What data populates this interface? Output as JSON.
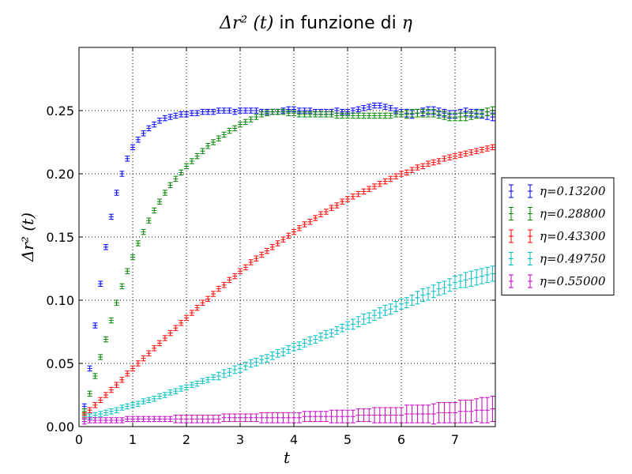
{
  "chart_data": {
    "type": "scatter",
    "title": {
      "math1": "Δr² (t)",
      "text": " in funzione di ",
      "math2": "η"
    },
    "xlabel": "t",
    "ylabel": "Δr² (t)",
    "xlim": [
      0,
      7.75
    ],
    "ylim": [
      0,
      0.3
    ],
    "xticks": [
      0,
      1,
      2,
      3,
      4,
      5,
      6,
      7
    ],
    "yticks": [
      0.0,
      0.05,
      0.1,
      0.15,
      0.2,
      0.25
    ],
    "ytick_labels": [
      "0.00",
      "0.05",
      "0.10",
      "0.15",
      "0.20",
      "0.25"
    ],
    "grid": true,
    "legend_placement": "outside-right",
    "x": [
      0.1,
      0.2,
      0.3,
      0.4,
      0.5,
      0.6,
      0.7,
      0.8,
      0.9,
      1.0,
      1.1,
      1.2,
      1.3,
      1.4,
      1.5,
      1.6,
      1.7,
      1.8,
      1.9,
      2.0,
      2.1,
      2.2,
      2.3,
      2.4,
      2.5,
      2.6,
      2.7,
      2.8,
      2.9,
      3.0,
      3.1,
      3.2,
      3.3,
      3.4,
      3.5,
      3.6,
      3.7,
      3.8,
      3.9,
      4.0,
      4.1,
      4.2,
      4.3,
      4.4,
      4.5,
      4.6,
      4.7,
      4.8,
      4.9,
      5.0,
      5.1,
      5.2,
      5.3,
      5.4,
      5.5,
      5.6,
      5.7,
      5.8,
      5.9,
      6.0,
      6.1,
      6.2,
      6.3,
      6.4,
      6.5,
      6.6,
      6.7,
      6.8,
      6.9,
      7.0,
      7.1,
      7.2,
      7.3,
      7.4,
      7.5,
      7.6,
      7.7
    ],
    "series": [
      {
        "name": "η=0.13200",
        "color": "#0000ff",
        "values": [
          0.016,
          0.046,
          0.08,
          0.113,
          0.142,
          0.166,
          0.185,
          0.2,
          0.212,
          0.221,
          0.227,
          0.232,
          0.236,
          0.239,
          0.242,
          0.244,
          0.245,
          0.246,
          0.247,
          0.247,
          0.248,
          0.248,
          0.249,
          0.249,
          0.249,
          0.25,
          0.25,
          0.25,
          0.249,
          0.25,
          0.25,
          0.25,
          0.25,
          0.249,
          0.249,
          0.249,
          0.249,
          0.25,
          0.251,
          0.251,
          0.25,
          0.25,
          0.25,
          0.249,
          0.249,
          0.249,
          0.249,
          0.25,
          0.249,
          0.249,
          0.25,
          0.251,
          0.252,
          0.253,
          0.254,
          0.254,
          0.253,
          0.252,
          0.25,
          0.249,
          0.248,
          0.247,
          0.248,
          0.249,
          0.25,
          0.25,
          0.249,
          0.248,
          0.247,
          0.247,
          0.248,
          0.249,
          0.248,
          0.248,
          0.247,
          0.246,
          0.245
        ],
        "errors": [
          0.002,
          0.002,
          0.002,
          0.002,
          0.002,
          0.002,
          0.002,
          0.002,
          0.002,
          0.002,
          0.002,
          0.002,
          0.002,
          0.002,
          0.002,
          0.002,
          0.002,
          0.002,
          0.002,
          0.002,
          0.002,
          0.002,
          0.002,
          0.002,
          0.002,
          0.002,
          0.002,
          0.002,
          0.002,
          0.002,
          0.002,
          0.002,
          0.002,
          0.002,
          0.002,
          0.002,
          0.002,
          0.002,
          0.002,
          0.002,
          0.002,
          0.002,
          0.002,
          0.002,
          0.002,
          0.002,
          0.002,
          0.002,
          0.002,
          0.002,
          0.002,
          0.002,
          0.002,
          0.002,
          0.002,
          0.002,
          0.002,
          0.002,
          0.002,
          0.002,
          0.003,
          0.003,
          0.003,
          0.003,
          0.003,
          0.003,
          0.003,
          0.003,
          0.003,
          0.003,
          0.003,
          0.003,
          0.003,
          0.003,
          0.003,
          0.003,
          0.003
        ]
      },
      {
        "name": "η=0.28800",
        "color": "#008000",
        "values": [
          0.012,
          0.026,
          0.04,
          0.055,
          0.069,
          0.084,
          0.098,
          0.111,
          0.123,
          0.134,
          0.145,
          0.154,
          0.163,
          0.171,
          0.178,
          0.185,
          0.191,
          0.196,
          0.201,
          0.206,
          0.21,
          0.214,
          0.218,
          0.222,
          0.225,
          0.228,
          0.231,
          0.234,
          0.236,
          0.239,
          0.241,
          0.243,
          0.245,
          0.247,
          0.248,
          0.249,
          0.249,
          0.249,
          0.248,
          0.248,
          0.247,
          0.247,
          0.247,
          0.247,
          0.247,
          0.247,
          0.247,
          0.246,
          0.246,
          0.246,
          0.246,
          0.246,
          0.246,
          0.246,
          0.246,
          0.246,
          0.246,
          0.246,
          0.247,
          0.247,
          0.247,
          0.248,
          0.248,
          0.248,
          0.248,
          0.248,
          0.247,
          0.246,
          0.245,
          0.245,
          0.245,
          0.245,
          0.246,
          0.247,
          0.248,
          0.249,
          0.25
        ],
        "errors": [
          0.002,
          0.002,
          0.002,
          0.002,
          0.002,
          0.002,
          0.002,
          0.002,
          0.002,
          0.002,
          0.002,
          0.002,
          0.002,
          0.002,
          0.002,
          0.002,
          0.002,
          0.002,
          0.002,
          0.002,
          0.002,
          0.002,
          0.002,
          0.002,
          0.002,
          0.002,
          0.002,
          0.002,
          0.002,
          0.002,
          0.002,
          0.002,
          0.002,
          0.002,
          0.002,
          0.002,
          0.002,
          0.002,
          0.002,
          0.002,
          0.002,
          0.002,
          0.002,
          0.002,
          0.002,
          0.002,
          0.002,
          0.002,
          0.002,
          0.002,
          0.002,
          0.002,
          0.002,
          0.002,
          0.002,
          0.002,
          0.002,
          0.002,
          0.002,
          0.002,
          0.003,
          0.003,
          0.003,
          0.003,
          0.003,
          0.003,
          0.003,
          0.003,
          0.003,
          0.003,
          0.003,
          0.003,
          0.003,
          0.003,
          0.003,
          0.003,
          0.003
        ]
      },
      {
        "name": "η=0.43300",
        "color": "#ff0000",
        "values": [
          0.009,
          0.013,
          0.017,
          0.021,
          0.025,
          0.029,
          0.033,
          0.037,
          0.042,
          0.046,
          0.05,
          0.054,
          0.058,
          0.062,
          0.066,
          0.07,
          0.074,
          0.078,
          0.082,
          0.086,
          0.09,
          0.094,
          0.098,
          0.101,
          0.105,
          0.109,
          0.112,
          0.116,
          0.119,
          0.123,
          0.126,
          0.13,
          0.133,
          0.136,
          0.139,
          0.142,
          0.145,
          0.148,
          0.151,
          0.154,
          0.157,
          0.16,
          0.162,
          0.165,
          0.168,
          0.17,
          0.173,
          0.175,
          0.178,
          0.18,
          0.182,
          0.184,
          0.186,
          0.188,
          0.19,
          0.192,
          0.194,
          0.196,
          0.198,
          0.2,
          0.201,
          0.203,
          0.205,
          0.206,
          0.208,
          0.209,
          0.21,
          0.212,
          0.213,
          0.214,
          0.215,
          0.216,
          0.217,
          0.218,
          0.219,
          0.22,
          0.221
        ],
        "errors": [
          0.002,
          0.002,
          0.002,
          0.002,
          0.002,
          0.002,
          0.002,
          0.002,
          0.002,
          0.002,
          0.002,
          0.002,
          0.002,
          0.002,
          0.002,
          0.002,
          0.002,
          0.002,
          0.002,
          0.002,
          0.002,
          0.002,
          0.002,
          0.002,
          0.002,
          0.002,
          0.002,
          0.002,
          0.002,
          0.002,
          0.002,
          0.002,
          0.002,
          0.002,
          0.002,
          0.002,
          0.002,
          0.002,
          0.002,
          0.002,
          0.002,
          0.002,
          0.002,
          0.002,
          0.002,
          0.002,
          0.002,
          0.002,
          0.002,
          0.002,
          0.002,
          0.002,
          0.002,
          0.002,
          0.002,
          0.002,
          0.002,
          0.002,
          0.002,
          0.002,
          0.002,
          0.002,
          0.002,
          0.002,
          0.002,
          0.002,
          0.002,
          0.002,
          0.002,
          0.002,
          0.002,
          0.002,
          0.002,
          0.002,
          0.002,
          0.002,
          0.002
        ]
      },
      {
        "name": "η=0.49750",
        "color": "#00bfbf",
        "values": [
          0.006,
          0.008,
          0.009,
          0.01,
          0.011,
          0.012,
          0.013,
          0.015,
          0.016,
          0.017,
          0.018,
          0.02,
          0.021,
          0.022,
          0.024,
          0.025,
          0.027,
          0.028,
          0.03,
          0.031,
          0.033,
          0.034,
          0.036,
          0.037,
          0.039,
          0.04,
          0.042,
          0.043,
          0.045,
          0.046,
          0.048,
          0.05,
          0.051,
          0.053,
          0.054,
          0.056,
          0.058,
          0.059,
          0.061,
          0.063,
          0.064,
          0.066,
          0.068,
          0.069,
          0.071,
          0.073,
          0.074,
          0.076,
          0.078,
          0.08,
          0.081,
          0.083,
          0.085,
          0.086,
          0.088,
          0.09,
          0.092,
          0.093,
          0.095,
          0.097,
          0.098,
          0.1,
          0.102,
          0.104,
          0.105,
          0.107,
          0.109,
          0.11,
          0.112,
          0.114,
          0.115,
          0.116,
          0.117,
          0.118,
          0.119,
          0.12,
          0.121
        ],
        "errors": [
          0.002,
          0.002,
          0.002,
          0.002,
          0.002,
          0.002,
          0.002,
          0.002,
          0.002,
          0.002,
          0.002,
          0.002,
          0.002,
          0.002,
          0.002,
          0.002,
          0.002,
          0.002,
          0.002,
          0.002,
          0.002,
          0.002,
          0.002,
          0.002,
          0.002,
          0.003,
          0.003,
          0.003,
          0.003,
          0.003,
          0.003,
          0.003,
          0.003,
          0.003,
          0.003,
          0.003,
          0.003,
          0.003,
          0.003,
          0.003,
          0.003,
          0.003,
          0.003,
          0.003,
          0.003,
          0.003,
          0.003,
          0.003,
          0.003,
          0.003,
          0.004,
          0.004,
          0.004,
          0.004,
          0.004,
          0.004,
          0.004,
          0.004,
          0.004,
          0.004,
          0.004,
          0.004,
          0.005,
          0.005,
          0.005,
          0.005,
          0.005,
          0.005,
          0.005,
          0.005,
          0.005,
          0.006,
          0.006,
          0.006,
          0.006,
          0.006,
          0.006
        ]
      },
      {
        "name": "η=0.55000",
        "color": "#bf00bf",
        "values": [
          0.004,
          0.005,
          0.005,
          0.005,
          0.005,
          0.005,
          0.005,
          0.005,
          0.006,
          0.006,
          0.006,
          0.006,
          0.006,
          0.006,
          0.006,
          0.006,
          0.006,
          0.006,
          0.006,
          0.006,
          0.006,
          0.006,
          0.006,
          0.006,
          0.006,
          0.006,
          0.007,
          0.007,
          0.007,
          0.007,
          0.007,
          0.007,
          0.007,
          0.007,
          0.007,
          0.007,
          0.007,
          0.007,
          0.007,
          0.007,
          0.007,
          0.008,
          0.008,
          0.008,
          0.008,
          0.008,
          0.008,
          0.008,
          0.008,
          0.008,
          0.008,
          0.009,
          0.009,
          0.009,
          0.009,
          0.009,
          0.009,
          0.009,
          0.009,
          0.009,
          0.01,
          0.01,
          0.01,
          0.01,
          0.01,
          0.01,
          0.011,
          0.011,
          0.011,
          0.011,
          0.012,
          0.012,
          0.012,
          0.013,
          0.013,
          0.013,
          0.014
        ],
        "errors": [
          0.002,
          0.002,
          0.002,
          0.002,
          0.002,
          0.002,
          0.002,
          0.002,
          0.002,
          0.002,
          0.002,
          0.002,
          0.002,
          0.002,
          0.002,
          0.002,
          0.002,
          0.003,
          0.003,
          0.003,
          0.003,
          0.003,
          0.003,
          0.003,
          0.003,
          0.003,
          0.003,
          0.003,
          0.003,
          0.003,
          0.003,
          0.003,
          0.003,
          0.004,
          0.004,
          0.004,
          0.004,
          0.004,
          0.004,
          0.004,
          0.004,
          0.004,
          0.004,
          0.004,
          0.004,
          0.004,
          0.005,
          0.005,
          0.005,
          0.005,
          0.005,
          0.005,
          0.005,
          0.005,
          0.006,
          0.006,
          0.006,
          0.006,
          0.006,
          0.006,
          0.007,
          0.007,
          0.007,
          0.007,
          0.007,
          0.008,
          0.008,
          0.008,
          0.008,
          0.008,
          0.009,
          0.009,
          0.009,
          0.009,
          0.01,
          0.01,
          0.01
        ]
      }
    ]
  }
}
